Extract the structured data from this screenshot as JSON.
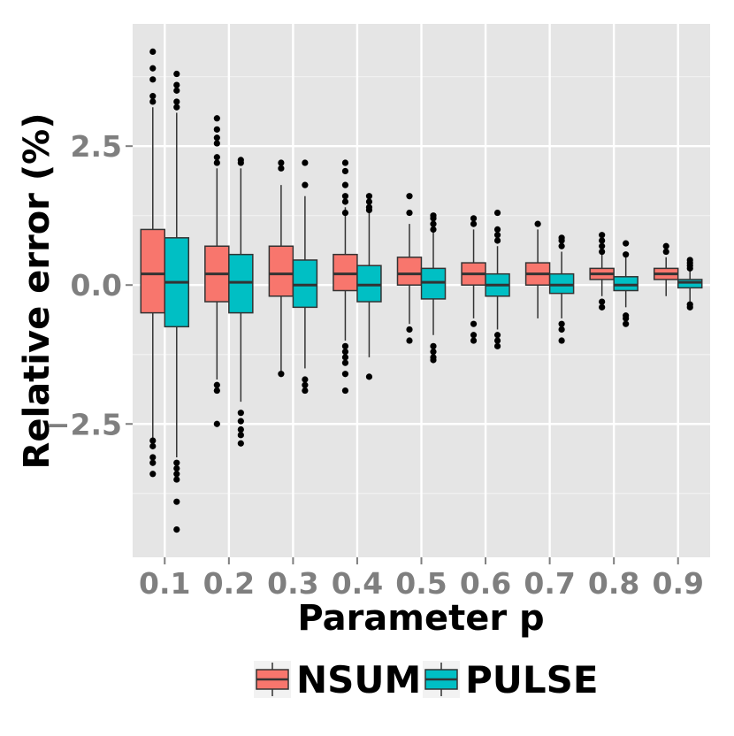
{
  "chart_data": {
    "type": "box",
    "xlabel": "Parameter p",
    "ylabel": "Relative error (%)",
    "categories": [
      "0.1",
      "0.2",
      "0.3",
      "0.4",
      "0.5",
      "0.6",
      "0.7",
      "0.8",
      "0.9"
    ],
    "ylim": [
      -4.9,
      4.7
    ],
    "yticks": [
      {
        "value": 2.5,
        "label": "2.5"
      },
      {
        "value": 0.0,
        "label": "0.0"
      },
      {
        "value": -2.5,
        "label": "−2.5"
      }
    ],
    "grid": true,
    "legend_position": "bottom",
    "series": [
      {
        "name": "NSUM",
        "color": "#f8766d",
        "boxes": [
          {
            "whisker_low": -2.8,
            "q1": -0.5,
            "median": 0.2,
            "q3": 1.0,
            "whisker_high": 3.2,
            "outliers": [
              4.2,
              3.9,
              3.7,
              3.4,
              3.3,
              -2.8,
              -2.9,
              -3.1,
              -3.2,
              -3.4
            ]
          },
          {
            "whisker_low": -1.7,
            "q1": -0.3,
            "median": 0.2,
            "q3": 0.7,
            "whisker_high": 2.1,
            "outliers": [
              3.0,
              2.8,
              2.65,
              2.55,
              2.3,
              2.2,
              -1.8,
              -1.9,
              -2.5
            ]
          },
          {
            "whisker_low": -1.6,
            "q1": -0.2,
            "median": 0.2,
            "q3": 0.7,
            "whisker_high": 1.8,
            "outliers": [
              2.2,
              2.1,
              -1.6
            ]
          },
          {
            "whisker_low": -1.0,
            "q1": -0.1,
            "median": 0.2,
            "q3": 0.55,
            "whisker_high": 1.4,
            "outliers": [
              2.2,
              2.05,
              1.8,
              1.6,
              1.5,
              1.3,
              -1.1,
              -1.2,
              -1.3,
              -1.4,
              -1.6,
              -1.9
            ]
          },
          {
            "whisker_low": -0.7,
            "q1": 0.0,
            "median": 0.2,
            "q3": 0.5,
            "whisker_high": 1.1,
            "outliers": [
              1.6,
              1.3,
              -0.8,
              -1.0
            ]
          },
          {
            "whisker_low": -0.6,
            "q1": 0.0,
            "median": 0.2,
            "q3": 0.4,
            "whisker_high": 1.0,
            "outliers": [
              1.2,
              1.1,
              -0.7,
              -0.9,
              -1.0
            ]
          },
          {
            "whisker_low": -0.6,
            "q1": 0.0,
            "median": 0.2,
            "q3": 0.4,
            "whisker_high": 1.0,
            "outliers": [
              1.1
            ]
          },
          {
            "whisker_low": -0.2,
            "q1": 0.1,
            "median": 0.2,
            "q3": 0.3,
            "whisker_high": 0.55,
            "outliers": [
              0.9,
              0.8,
              0.7,
              0.6,
              -0.3,
              -0.4
            ]
          },
          {
            "whisker_low": -0.2,
            "q1": 0.1,
            "median": 0.2,
            "q3": 0.3,
            "whisker_high": 0.5,
            "outliers": [
              0.7,
              0.6
            ]
          }
        ]
      },
      {
        "name": "PULSE",
        "color": "#00bfc4",
        "boxes": [
          {
            "whisker_low": -3.1,
            "q1": -0.75,
            "median": 0.05,
            "q3": 0.85,
            "whisker_high": 3.1,
            "outliers": [
              3.8,
              3.6,
              3.5,
              3.3,
              3.2,
              -3.2,
              -3.3,
              -3.4,
              -3.5,
              -3.9,
              -4.4
            ]
          },
          {
            "whisker_low": -2.1,
            "q1": -0.5,
            "median": 0.05,
            "q3": 0.55,
            "whisker_high": 2.1,
            "outliers": [
              2.25,
              2.2,
              -2.3,
              -2.45,
              -2.6,
              -2.7,
              -2.85
            ]
          },
          {
            "whisker_low": -1.5,
            "q1": -0.4,
            "median": 0.0,
            "q3": 0.45,
            "whisker_high": 1.6,
            "outliers": [
              2.2,
              1.8,
              -1.7,
              -1.8,
              -1.9
            ]
          },
          {
            "whisker_low": -1.3,
            "q1": -0.3,
            "median": 0.0,
            "q3": 0.35,
            "whisker_high": 1.3,
            "outliers": [
              1.6,
              1.5,
              1.4,
              1.35,
              -1.65
            ]
          },
          {
            "whisker_low": -0.9,
            "q1": -0.25,
            "median": 0.05,
            "q3": 0.3,
            "whisker_high": 1.0,
            "outliers": [
              1.25,
              1.2,
              1.1,
              1.0,
              -1.1,
              -1.2,
              -1.3,
              -1.35
            ]
          },
          {
            "whisker_low": -0.8,
            "q1": -0.2,
            "median": 0.0,
            "q3": 0.2,
            "whisker_high": 0.7,
            "outliers": [
              1.3,
              1.0,
              0.9,
              0.8,
              -0.9,
              -1.0,
              -1.1
            ]
          },
          {
            "whisker_low": -0.6,
            "q1": -0.15,
            "median": 0.0,
            "q3": 0.2,
            "whisker_high": 0.6,
            "outliers": [
              0.85,
              0.8,
              0.7,
              -0.7,
              -0.8,
              -1.0
            ]
          },
          {
            "whisker_low": -0.4,
            "q1": -0.1,
            "median": 0.0,
            "q3": 0.15,
            "whisker_high": 0.5,
            "outliers": [
              0.75,
              0.55,
              -0.55,
              -0.6,
              -0.7
            ]
          },
          {
            "whisker_low": -0.3,
            "q1": -0.05,
            "median": 0.05,
            "q3": 0.1,
            "whisker_high": 0.25,
            "outliers": [
              0.45,
              0.4,
              0.35,
              0.3,
              -0.35,
              -0.4
            ]
          }
        ]
      }
    ]
  }
}
